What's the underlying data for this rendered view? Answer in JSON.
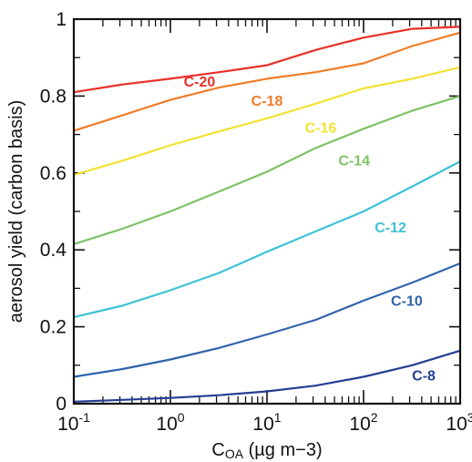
{
  "chart_data": {
    "type": "line",
    "title": "",
    "xlabel": "C",
    "xlabel_sub": "OA",
    "xlabel_unit": " (µg m−3)",
    "ylabel": "aerosol  yield  (carbon basis)",
    "xscale": "log",
    "xlim": [
      0.1,
      1000
    ],
    "ylim": [
      0,
      1
    ],
    "grid": false,
    "legend": "inline labels",
    "x_ticks": [
      {
        "value": 0.1,
        "base": "10",
        "exp": "-1"
      },
      {
        "value": 1,
        "base": "10",
        "exp": "0"
      },
      {
        "value": 10,
        "base": "10",
        "exp": "1"
      },
      {
        "value": 100,
        "base": "10",
        "exp": "2"
      },
      {
        "value": 1000,
        "base": "10",
        "exp": "3"
      }
    ],
    "y_ticks": [
      {
        "value": 0,
        "label": "0"
      },
      {
        "value": 0.2,
        "label": "0.2"
      },
      {
        "value": 0.4,
        "label": "0.4"
      },
      {
        "value": 0.6,
        "label": "0.6"
      },
      {
        "value": 0.8,
        "label": "0.8"
      },
      {
        "value": 1,
        "label": "1"
      }
    ],
    "x": [
      0.1,
      0.32,
      1,
      3.2,
      10,
      32,
      100,
      320,
      1000
    ],
    "series": [
      {
        "name": "C-20",
        "color": "#e8312a",
        "label_x": 2,
        "label_y": 0.825,
        "values": [
          0.81,
          0.83,
          0.845,
          0.862,
          0.88,
          0.92,
          0.952,
          0.975,
          0.98
        ]
      },
      {
        "name": "C-18",
        "color": "#f07c28",
        "label_x": 10,
        "label_y": 0.775,
        "values": [
          0.71,
          0.75,
          0.79,
          0.822,
          0.845,
          0.862,
          0.885,
          0.93,
          0.965
        ]
      },
      {
        "name": "C-16",
        "color": "#f2e233",
        "label_x": 36,
        "label_y": 0.705,
        "values": [
          0.595,
          0.632,
          0.672,
          0.708,
          0.742,
          0.78,
          0.82,
          0.845,
          0.875
        ]
      },
      {
        "name": "C-14",
        "color": "#7ec266",
        "label_x": 80,
        "label_y": 0.62,
        "values": [
          0.415,
          0.455,
          0.5,
          0.552,
          0.603,
          0.665,
          0.715,
          0.762,
          0.8
        ]
      },
      {
        "name": "C-12",
        "color": "#3ec2d6",
        "label_x": 190,
        "label_y": 0.445,
        "values": [
          0.225,
          0.255,
          0.295,
          0.34,
          0.395,
          0.448,
          0.5,
          0.565,
          0.63
        ]
      },
      {
        "name": "C-10",
        "color": "#3163ac",
        "label_x": 280,
        "label_y": 0.255,
        "values": [
          0.07,
          0.09,
          0.115,
          0.145,
          0.18,
          0.218,
          0.268,
          0.315,
          0.365
        ]
      },
      {
        "name": "C-8",
        "color": "#243f92",
        "label_x": 420,
        "label_y": 0.06,
        "values": [
          0.005,
          0.01,
          0.015,
          0.022,
          0.032,
          0.047,
          0.07,
          0.1,
          0.138
        ]
      }
    ]
  }
}
